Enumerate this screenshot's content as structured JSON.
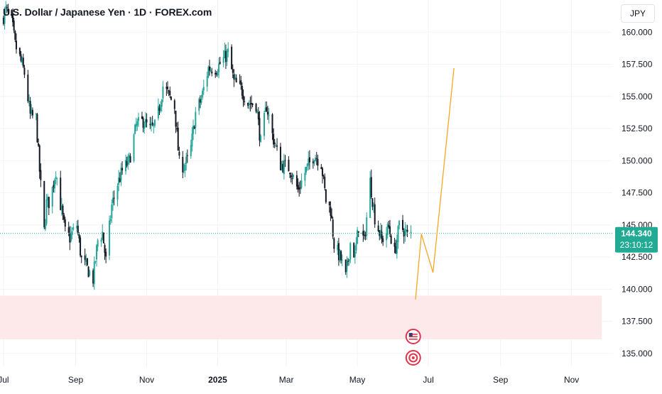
{
  "header": {
    "title": "U.S. Dollar / Japanese Yen · 1D · FOREX.com",
    "currency": "JPY"
  },
  "price_badge": {
    "price": "144.340",
    "countdown": "23:10:12",
    "color": "#22ab94"
  },
  "colors": {
    "up": "#26a69a",
    "down": "#131722",
    "projection": "#f5a623",
    "zone_fill": "#fde8ea",
    "last_price_line": "#22ab94",
    "event_red": "#e0354c"
  },
  "icons": {
    "event_1": "us-flag-icon",
    "event_2": "target-icon"
  },
  "chart_data": {
    "type": "candlestick",
    "symbol": "USDJPY",
    "interval": "1D",
    "ylim": [
      134.0,
      162.5
    ],
    "y_ticks": [
      {
        "value": 160.0,
        "label": "160.000"
      },
      {
        "value": 157.5,
        "label": "157.500"
      },
      {
        "value": 155.0,
        "label": "155.000"
      },
      {
        "value": 152.5,
        "label": "152.500"
      },
      {
        "value": 150.0,
        "label": "150.000"
      },
      {
        "value": 147.5,
        "label": "147.500"
      },
      {
        "value": 145.0,
        "label": "145.000"
      },
      {
        "value": 142.5,
        "label": "142.500"
      },
      {
        "value": 140.0,
        "label": "140.000"
      },
      {
        "value": 137.5,
        "label": "137.500"
      },
      {
        "value": 135.0,
        "label": "135.000"
      }
    ],
    "x_ticks": [
      {
        "date": "2024-07-01",
        "label": "Jul",
        "bold": false
      },
      {
        "date": "2024-09-01",
        "label": "Sep",
        "bold": false
      },
      {
        "date": "2024-11-01",
        "label": "Nov",
        "bold": false
      },
      {
        "date": "2025-01-01",
        "label": "2025",
        "bold": true
      },
      {
        "date": "2025-03-01",
        "label": "Mar",
        "bold": false
      },
      {
        "date": "2025-05-01",
        "label": "May",
        "bold": false
      },
      {
        "date": "2025-07-01",
        "label": "Jul",
        "bold": false
      },
      {
        "date": "2025-09-01",
        "label": "Sep",
        "bold": false
      },
      {
        "date": "2025-11-01",
        "label": "Nov",
        "bold": false
      }
    ],
    "x_range": [
      "2024-06-28",
      "2025-12-06"
    ],
    "close_path": [
      [
        "2024-06-30",
        161.0
      ],
      [
        "2024-07-03",
        161.7
      ],
      [
        "2024-07-08",
        160.9
      ],
      [
        "2024-07-11",
        159.0
      ],
      [
        "2024-07-15",
        158.0
      ],
      [
        "2024-07-19",
        156.8
      ],
      [
        "2024-07-24",
        153.5
      ],
      [
        "2024-07-29",
        153.3
      ],
      [
        "2024-08-01",
        149.2
      ],
      [
        "2024-08-05",
        144.5
      ],
      [
        "2024-08-07",
        146.7
      ],
      [
        "2024-08-10",
        146.8
      ],
      [
        "2024-08-15",
        149.3
      ],
      [
        "2024-08-19",
        146.6
      ],
      [
        "2024-08-23",
        144.4
      ],
      [
        "2024-08-27",
        144.0
      ],
      [
        "2024-09-02",
        145.0
      ],
      [
        "2024-09-06",
        142.3
      ],
      [
        "2024-09-11",
        141.6
      ],
      [
        "2024-09-16",
        140.8
      ],
      [
        "2024-09-20",
        143.8
      ],
      [
        "2024-09-24",
        144.4
      ],
      [
        "2024-09-27",
        142.2
      ],
      [
        "2024-10-02",
        146.5
      ],
      [
        "2024-10-07",
        148.2
      ],
      [
        "2024-10-11",
        149.2
      ],
      [
        "2024-10-17",
        150.0
      ],
      [
        "2024-10-23",
        152.7
      ],
      [
        "2024-10-29",
        153.1
      ],
      [
        "2024-11-04",
        152.4
      ],
      [
        "2024-11-09",
        152.7
      ],
      [
        "2024-11-15",
        155.8
      ],
      [
        "2024-11-20",
        155.1
      ],
      [
        "2024-11-25",
        154.2
      ],
      [
        "2024-11-29",
        149.8
      ],
      [
        "2024-12-03",
        149.6
      ],
      [
        "2024-12-08",
        150.3
      ],
      [
        "2024-12-13",
        153.7
      ],
      [
        "2024-12-18",
        154.8
      ],
      [
        "2024-12-24",
        157.2
      ],
      [
        "2024-12-31",
        157.2
      ],
      [
        "2025-01-06",
        157.9
      ],
      [
        "2025-01-10",
        158.4
      ],
      [
        "2025-01-15",
        156.1
      ],
      [
        "2025-01-21",
        155.6
      ],
      [
        "2025-01-27",
        154.5
      ],
      [
        "2025-02-03",
        154.4
      ],
      [
        "2025-02-07",
        151.4
      ],
      [
        "2025-02-12",
        154.3
      ],
      [
        "2025-02-17",
        152.0
      ],
      [
        "2025-02-24",
        149.7
      ],
      [
        "2025-03-04",
        149.4
      ],
      [
        "2025-03-11",
        147.7
      ],
      [
        "2025-03-18",
        149.3
      ],
      [
        "2025-03-25",
        150.5
      ],
      [
        "2025-03-31",
        149.8
      ],
      [
        "2025-04-04",
        146.9
      ],
      [
        "2025-04-08",
        146.2
      ],
      [
        "2025-04-11",
        143.5
      ],
      [
        "2025-04-17",
        142.3
      ],
      [
        "2025-04-21",
        140.9
      ],
      [
        "2025-04-25",
        143.6
      ],
      [
        "2025-04-29",
        142.6
      ],
      [
        "2025-05-02",
        144.9
      ],
      [
        "2025-05-07",
        143.7
      ],
      [
        "2025-05-12",
        148.4
      ],
      [
        "2025-05-16",
        145.6
      ],
      [
        "2025-05-22",
        143.8
      ],
      [
        "2025-05-28",
        144.8
      ],
      [
        "2025-06-02",
        142.8
      ],
      [
        "2025-06-06",
        144.9
      ],
      [
        "2025-06-10",
        144.6
      ],
      [
        "2025-06-13",
        144.2
      ],
      [
        "2025-06-16",
        144.34
      ]
    ],
    "projection": [
      [
        "2025-06-20",
        139.2
      ],
      [
        "2025-06-25",
        144.3
      ],
      [
        "2025-07-05",
        141.3
      ],
      [
        "2025-07-23",
        157.2
      ]
    ],
    "zone": {
      "from": "2024-06-28",
      "to": "2025-11-27",
      "low": 136.1,
      "high": 139.5
    },
    "last_price": 144.34,
    "events": [
      {
        "date": "2025-06-18",
        "kind": "economic-us"
      },
      {
        "date": "2025-06-18",
        "kind": "earnings"
      }
    ]
  }
}
